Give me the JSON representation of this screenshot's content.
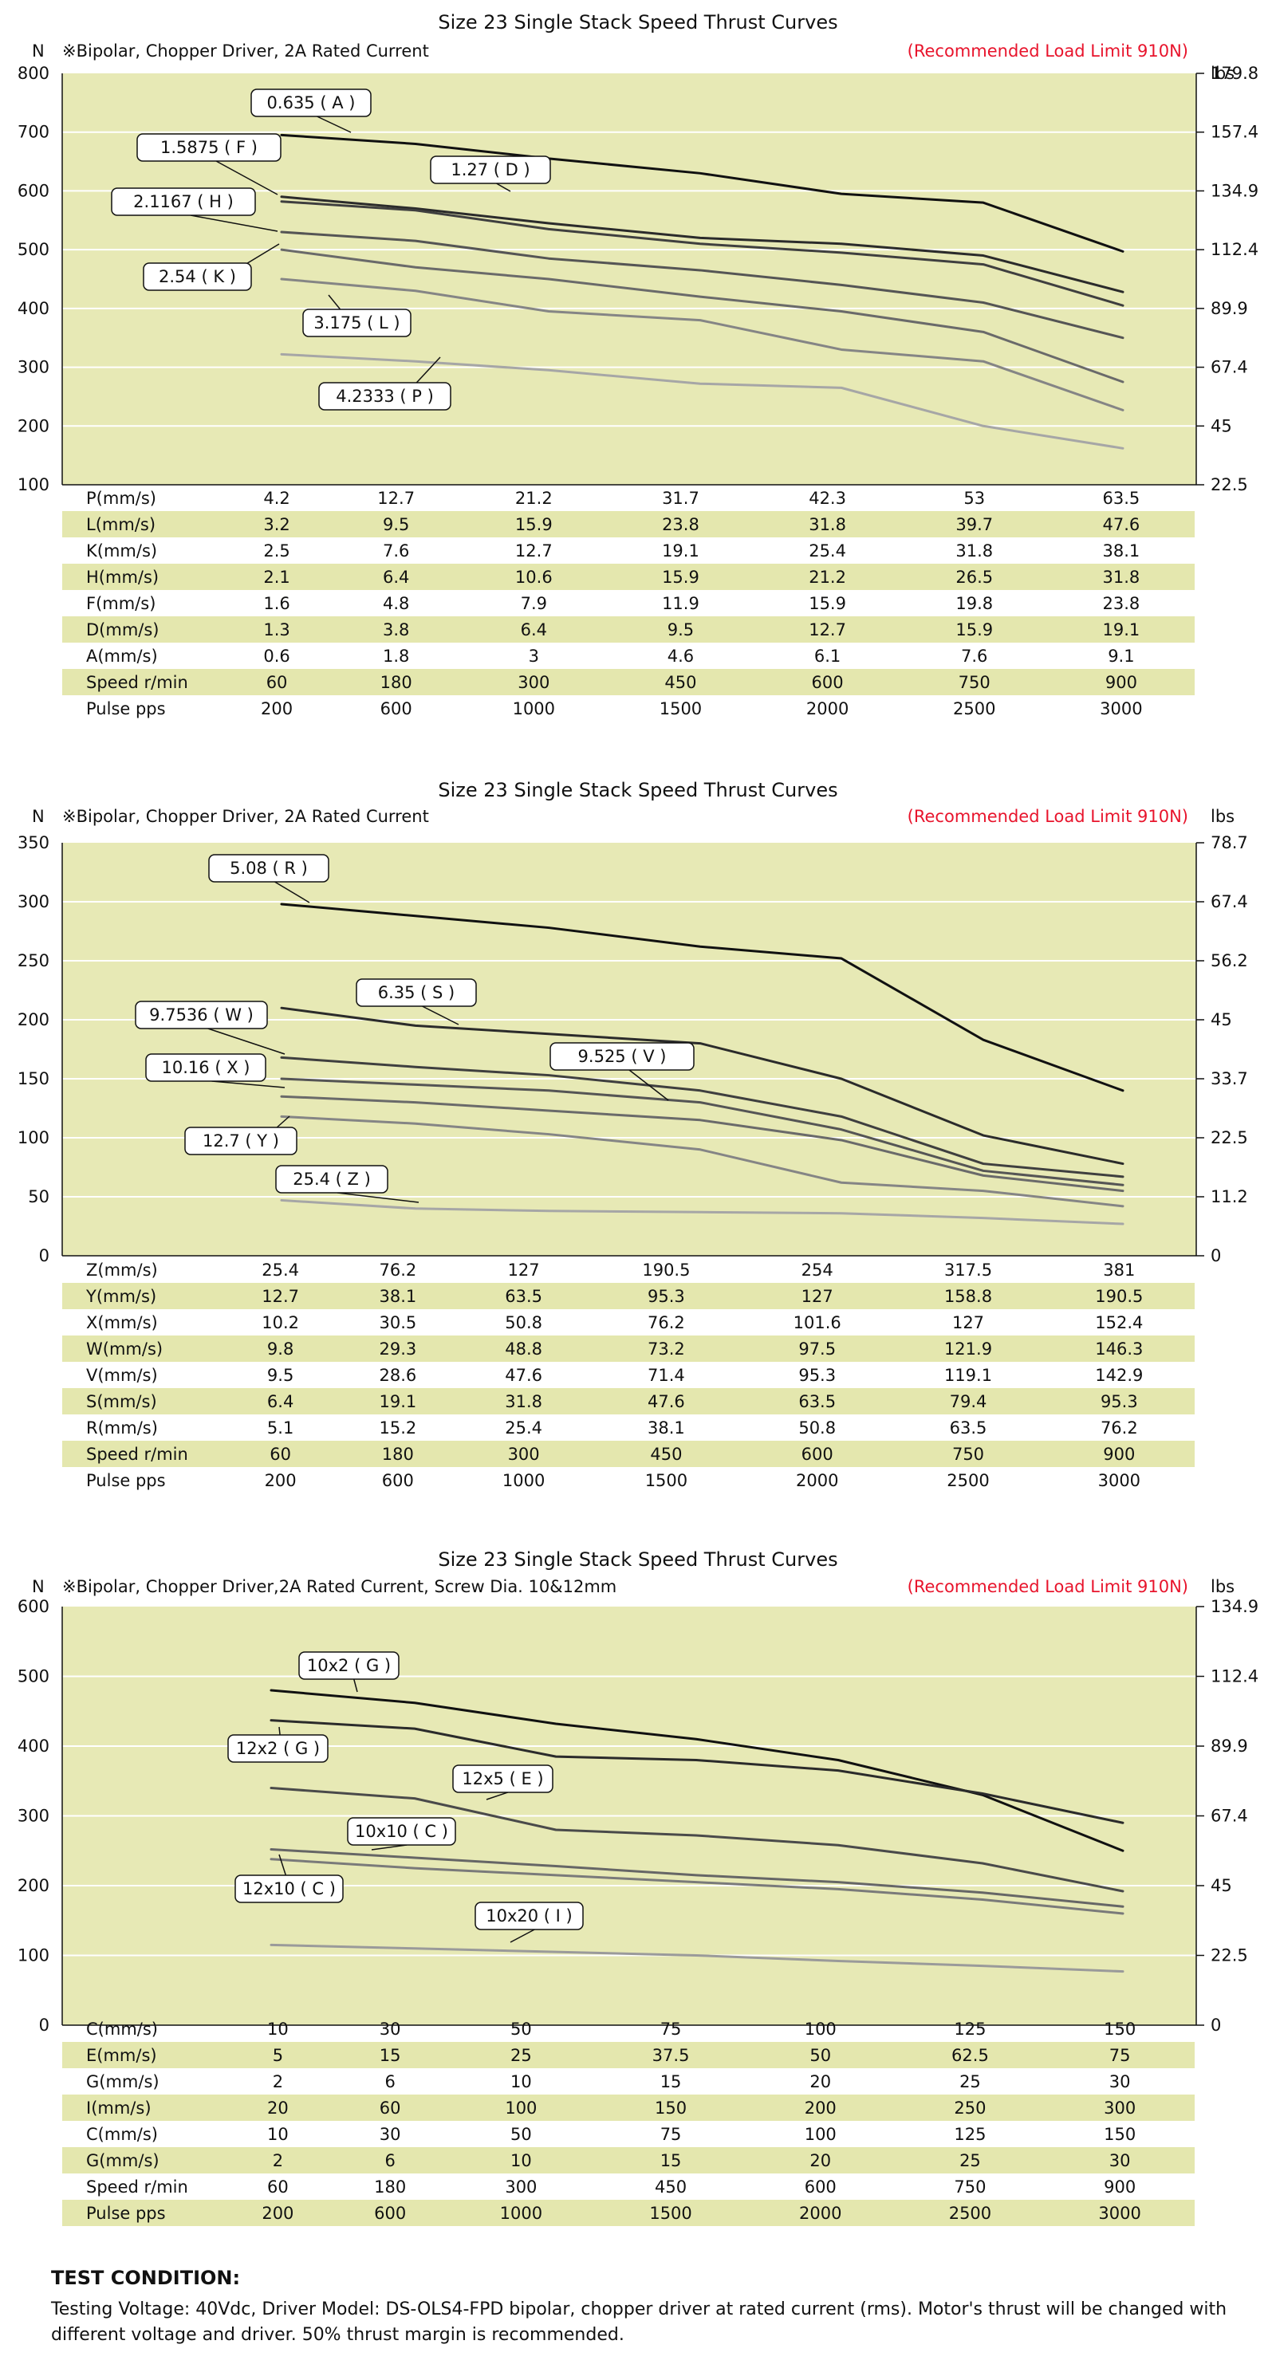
{
  "charts": [
    {
      "title": "Size 23 Single Stack Speed Thrust Curves",
      "note": "※Bipolar, Chopper Driver, 2A Rated Current",
      "limit": "(Recommended Load Limit 910N)",
      "unit_left": "N",
      "unit_right": "lbs",
      "table": {
        "rows": [
          {
            "label": "P(mm/s)",
            "values": [
              "4.2",
              "12.7",
              "21.2",
              "31.7",
              "42.3",
              "53",
              "63.5"
            ],
            "band": false
          },
          {
            "label": "L(mm/s)",
            "values": [
              "3.2",
              "9.5",
              "15.9",
              "23.8",
              "31.8",
              "39.7",
              "47.6"
            ],
            "band": true
          },
          {
            "label": "K(mm/s)",
            "values": [
              "2.5",
              "7.6",
              "12.7",
              "19.1",
              "25.4",
              "31.8",
              "38.1"
            ],
            "band": false
          },
          {
            "label": "H(mm/s)",
            "values": [
              "2.1",
              "6.4",
              "10.6",
              "15.9",
              "21.2",
              "26.5",
              "31.8"
            ],
            "band": true
          },
          {
            "label": "F(mm/s)",
            "values": [
              "1.6",
              "4.8",
              "7.9",
              "11.9",
              "15.9",
              "19.8",
              "23.8"
            ],
            "band": false
          },
          {
            "label": "D(mm/s)",
            "values": [
              "1.3",
              "3.8",
              "6.4",
              "9.5",
              "12.7",
              "15.9",
              "19.1"
            ],
            "band": true
          },
          {
            "label": "A(mm/s)",
            "values": [
              "0.6",
              "1.8",
              "3",
              "4.6",
              "6.1",
              "7.6",
              "9.1"
            ],
            "band": false
          },
          {
            "label": "Speed r/min",
            "values": [
              "60",
              "180",
              "300",
              "450",
              "600",
              "750",
              "900"
            ],
            "band": true
          },
          {
            "label": "Pulse  pps",
            "values": [
              "200",
              "600",
              "1000",
              "1500",
              "2000",
              "2500",
              "3000"
            ],
            "band": false
          }
        ]
      }
    },
    {
      "title": "Size 23 Single Stack Speed Thrust Curves",
      "note": "※Bipolar, Chopper Driver, 2A Rated Current",
      "limit": "(Recommended Load Limit 910N)",
      "unit_left": "N",
      "unit_right": "lbs",
      "table": {
        "rows": [
          {
            "label": "Z(mm/s)",
            "values": [
              "25.4",
              "76.2",
              "127",
              "190.5",
              "254",
              "317.5",
              "381"
            ],
            "band": false
          },
          {
            "label": "Y(mm/s)",
            "values": [
              "12.7",
              "38.1",
              "63.5",
              "95.3",
              "127",
              "158.8",
              "190.5"
            ],
            "band": true
          },
          {
            "label": "X(mm/s)",
            "values": [
              "10.2",
              "30.5",
              "50.8",
              "76.2",
              "101.6",
              "127",
              "152.4"
            ],
            "band": false
          },
          {
            "label": "W(mm/s)",
            "values": [
              "9.8",
              "29.3",
              "48.8",
              "73.2",
              "97.5",
              "121.9",
              "146.3"
            ],
            "band": true
          },
          {
            "label": "V(mm/s)",
            "values": [
              "9.5",
              "28.6",
              "47.6",
              "71.4",
              "95.3",
              "119.1",
              "142.9"
            ],
            "band": false
          },
          {
            "label": "S(mm/s)",
            "values": [
              "6.4",
              "19.1",
              "31.8",
              "47.6",
              "63.5",
              "79.4",
              "95.3"
            ],
            "band": true
          },
          {
            "label": "R(mm/s)",
            "values": [
              "5.1",
              "15.2",
              "25.4",
              "38.1",
              "50.8",
              "63.5",
              "76.2"
            ],
            "band": false
          },
          {
            "label": "Speed r/min",
            "values": [
              "60",
              "180",
              "300",
              "450",
              "600",
              "750",
              "900"
            ],
            "band": true
          },
          {
            "label": "Pulse  pps",
            "values": [
              "200",
              "600",
              "1000",
              "1500",
              "2000",
              "2500",
              "3000"
            ],
            "band": false
          }
        ]
      }
    },
    {
      "title": "Size 23 Single Stack Speed Thrust Curves",
      "note": "※Bipolar, Chopper Driver,2A Rated Current, Screw Dia. 10&12mm",
      "limit": "(Recommended Load Limit 910N)",
      "unit_left": "N",
      "unit_right": "lbs",
      "table": {
        "rows": [
          {
            "label": "C(mm/s)",
            "values": [
              "10",
              "30",
              "50",
              "75",
              "100",
              "125",
              "150"
            ],
            "band": false
          },
          {
            "label": "E(mm/s)",
            "values": [
              "5",
              "15",
              "25",
              "37.5",
              "50",
              "62.5",
              "75"
            ],
            "band": true
          },
          {
            "label": "G(mm/s)",
            "values": [
              "2",
              "6",
              "10",
              "15",
              "20",
              "25",
              "30"
            ],
            "band": false
          },
          {
            "label": "I(mm/s)",
            "values": [
              "20",
              "60",
              "100",
              "150",
              "200",
              "250",
              "300"
            ],
            "band": true
          },
          {
            "label": "C(mm/s)",
            "values": [
              "10",
              "30",
              "50",
              "75",
              "100",
              "125",
              "150"
            ],
            "band": false
          },
          {
            "label": "G(mm/s)",
            "values": [
              "2",
              "6",
              "10",
              "15",
              "20",
              "25",
              "30"
            ],
            "band": true
          },
          {
            "label": "Speed r/min",
            "values": [
              "60",
              "180",
              "300",
              "450",
              "600",
              "750",
              "900"
            ],
            "band": false
          },
          {
            "label": "Pulse  pps",
            "values": [
              "200",
              "600",
              "1000",
              "1500",
              "2000",
              "2500",
              "3000"
            ],
            "band": true
          }
        ]
      }
    }
  ],
  "chart_data": [
    {
      "type": "line",
      "title": "Size 23 Single Stack Speed Thrust Curves",
      "ylabel": "N",
      "y2label": "lbs",
      "ylim": [
        100,
        800
      ],
      "yticks": [
        100,
        200,
        300,
        400,
        500,
        600,
        700,
        800
      ],
      "y2ticks": [
        "22.5",
        "45",
        "67.4",
        "89.9",
        "112.4",
        "134.9",
        "157.4",
        "179.8"
      ],
      "x": [
        200,
        600,
        1000,
        1500,
        2000,
        2500,
        3000
      ],
      "colors": {
        "plot_bg": "#e7e9b5",
        "band": "#e4e7ae",
        "limit": "#e8142c"
      },
      "series": [
        {
          "name": "0.635 ( A )",
          "values": [
            695,
            680,
            655,
            630,
            595,
            580,
            497
          ],
          "color": "#111111"
        },
        {
          "name": "1.27 ( D )",
          "values": [
            590,
            570,
            545,
            520,
            510,
            490,
            428
          ],
          "color": "#2b2b2b"
        },
        {
          "name": "1.5875 ( F )",
          "values": [
            582,
            567,
            535,
            510,
            495,
            475,
            405
          ],
          "color": "#3f3f3f"
        },
        {
          "name": "2.1167 ( H )",
          "values": [
            530,
            515,
            485,
            465,
            440,
            410,
            350
          ],
          "color": "#555555"
        },
        {
          "name": "2.54 ( K )",
          "values": [
            500,
            470,
            450,
            420,
            395,
            360,
            275
          ],
          "color": "#6a6a6a"
        },
        {
          "name": "3.175 ( L )",
          "values": [
            450,
            430,
            395,
            380,
            330,
            310,
            227
          ],
          "color": "#858585"
        },
        {
          "name": "4.2333 ( P )",
          "values": [
            322,
            310,
            295,
            272,
            265,
            200,
            162
          ],
          "color": "#a6a6a6"
        }
      ]
    },
    {
      "type": "line",
      "title": "Size 23 Single Stack Speed Thrust Curves",
      "ylabel": "N",
      "y2label": "lbs",
      "ylim": [
        0,
        350
      ],
      "yticks": [
        0,
        50,
        100,
        150,
        200,
        250,
        300,
        350
      ],
      "y2ticks": [
        "0",
        "11.2",
        "22.5",
        "33.7",
        "45",
        "56.2",
        "67.4",
        "78.7"
      ],
      "x": [
        200,
        600,
        1000,
        1500,
        2000,
        2500,
        3000
      ],
      "colors": {
        "plot_bg": "#e7e9b5",
        "band": "#e4e7ae",
        "limit": "#e8142c"
      },
      "series": [
        {
          "name": "5.08 ( R )",
          "values": [
            298,
            288,
            278,
            262,
            252,
            183,
            140
          ],
          "color": "#111111"
        },
        {
          "name": "6.35 ( S )",
          "values": [
            210,
            195,
            188,
            180,
            150,
            102,
            78
          ],
          "color": "#2b2b2b"
        },
        {
          "name": "9.525 ( V )",
          "values": [
            168,
            160,
            153,
            140,
            118,
            78,
            67
          ],
          "color": "#3f3f3f"
        },
        {
          "name": "9.7536 ( W )",
          "values": [
            150,
            145,
            140,
            130,
            107,
            72,
            60
          ],
          "color": "#555555"
        },
        {
          "name": "10.16 ( X )",
          "values": [
            135,
            130,
            123,
            115,
            98,
            68,
            55
          ],
          "color": "#6a6a6a"
        },
        {
          "name": "12.7 ( Y )",
          "values": [
            118,
            112,
            103,
            90,
            62,
            55,
            42
          ],
          "color": "#858585"
        },
        {
          "name": "25.4 ( Z )",
          "values": [
            47,
            40,
            38,
            37,
            36,
            32,
            27
          ],
          "color": "#a6a6a6"
        }
      ]
    },
    {
      "type": "line",
      "title": "Size 23 Single Stack Speed Thrust Curves",
      "ylabel": "N",
      "y2label": "lbs",
      "ylim": [
        0,
        600
      ],
      "yticks": [
        0,
        100,
        200,
        300,
        400,
        500,
        600
      ],
      "y2ticks": [
        "0",
        "22.5",
        "45",
        "67.4",
        "89.9",
        "112.4",
        "134.9"
      ],
      "x": [
        200,
        600,
        1000,
        1500,
        2000,
        2500,
        3000
      ],
      "colors": {
        "plot_bg": "#e7e9b5",
        "band": "#e4e7ae",
        "limit": "#e8142c"
      },
      "series": [
        {
          "name": "10x2 ( G )",
          "values": [
            480,
            462,
            432,
            410,
            380,
            330,
            250
          ],
          "color": "#111111"
        },
        {
          "name": "12x2 ( G )",
          "values": [
            437,
            425,
            385,
            380,
            365,
            332,
            290
          ],
          "color": "#2b2b2b"
        },
        {
          "name": "12x5 ( E )",
          "values": [
            340,
            325,
            280,
            272,
            258,
            232,
            192
          ],
          "color": "#4a4a4a"
        },
        {
          "name": "10x10 ( C )",
          "values": [
            252,
            240,
            228,
            215,
            205,
            190,
            170
          ],
          "color": "#666666"
        },
        {
          "name": "12x10 ( C )",
          "values": [
            238,
            225,
            215,
            205,
            195,
            180,
            160
          ],
          "color": "#7a7a7a"
        },
        {
          "name": "10x20 ( I )",
          "values": [
            115,
            110,
            105,
            100,
            92,
            85,
            77
          ],
          "color": "#9a9a9a"
        }
      ]
    }
  ],
  "test_condition": {
    "title": "TEST CONDITION:",
    "body": "Testing Voltage: 40Vdc, Driver Model: DS-OLS4-FPD bipolar, chopper driver at rated current (rms). Motor's thrust will be changed with different voltage and driver. 50% thrust margin is recommended."
  }
}
